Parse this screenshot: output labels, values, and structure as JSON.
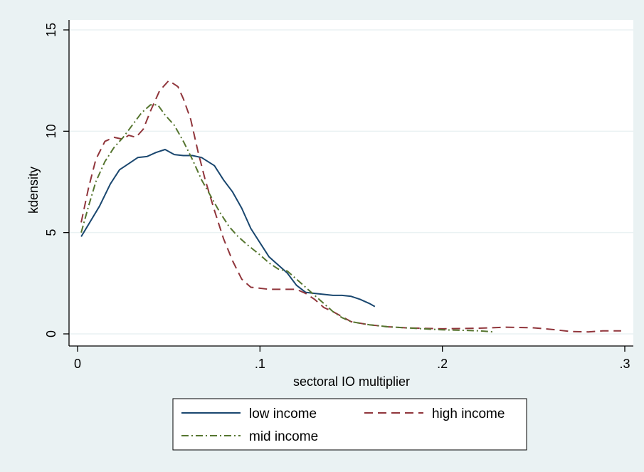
{
  "chart_data": {
    "type": "line",
    "xlabel": "sectoral IO multiplier",
    "ylabel": "kdensity",
    "xlim": [
      0,
      0.3
    ],
    "ylim": [
      0,
      15
    ],
    "x_ticks": [
      0,
      0.1,
      0.2,
      0.3
    ],
    "x_tick_labels": [
      "0",
      ".1",
      ".2",
      ".3"
    ],
    "y_ticks": [
      0,
      5,
      10,
      15
    ],
    "y_tick_labels": [
      "0",
      "5",
      "10",
      "15"
    ],
    "grid": "horizontal",
    "legend_position": "bottom",
    "series": [
      {
        "name": "low income",
        "color": "#1a476f",
        "dash": "solid",
        "points": [
          [
            0.002,
            4.8
          ],
          [
            0.006,
            5.4
          ],
          [
            0.012,
            6.3
          ],
          [
            0.018,
            7.4
          ],
          [
            0.023,
            8.1
          ],
          [
            0.028,
            8.4
          ],
          [
            0.033,
            8.7
          ],
          [
            0.038,
            8.75
          ],
          [
            0.043,
            8.95
          ],
          [
            0.048,
            9.1
          ],
          [
            0.053,
            8.85
          ],
          [
            0.058,
            8.8
          ],
          [
            0.063,
            8.8
          ],
          [
            0.068,
            8.7
          ],
          [
            0.075,
            8.3
          ],
          [
            0.08,
            7.6
          ],
          [
            0.085,
            7.0
          ],
          [
            0.09,
            6.2
          ],
          [
            0.095,
            5.2
          ],
          [
            0.1,
            4.5
          ],
          [
            0.105,
            3.8
          ],
          [
            0.11,
            3.4
          ],
          [
            0.115,
            3.0
          ],
          [
            0.12,
            2.4
          ],
          [
            0.125,
            2.05
          ],
          [
            0.13,
            2.0
          ],
          [
            0.135,
            1.95
          ],
          [
            0.14,
            1.9
          ],
          [
            0.145,
            1.9
          ],
          [
            0.15,
            1.85
          ],
          [
            0.155,
            1.7
          ],
          [
            0.16,
            1.5
          ],
          [
            0.163,
            1.35
          ]
        ]
      },
      {
        "name": "high income",
        "color": "#90353b",
        "dash": "long-dash",
        "points": [
          [
            0.002,
            5.5
          ],
          [
            0.006,
            7.2
          ],
          [
            0.01,
            8.6
          ],
          [
            0.015,
            9.5
          ],
          [
            0.02,
            9.7
          ],
          [
            0.025,
            9.6
          ],
          [
            0.028,
            9.8
          ],
          [
            0.032,
            9.7
          ],
          [
            0.036,
            10.1
          ],
          [
            0.04,
            11.0
          ],
          [
            0.045,
            12.0
          ],
          [
            0.05,
            12.5
          ],
          [
            0.055,
            12.2
          ],
          [
            0.058,
            11.6
          ],
          [
            0.062,
            10.6
          ],
          [
            0.066,
            9.0
          ],
          [
            0.07,
            7.6
          ],
          [
            0.075,
            6.1
          ],
          [
            0.08,
            4.7
          ],
          [
            0.085,
            3.6
          ],
          [
            0.09,
            2.7
          ],
          [
            0.095,
            2.3
          ],
          [
            0.1,
            2.25
          ],
          [
            0.105,
            2.2
          ],
          [
            0.11,
            2.2
          ],
          [
            0.115,
            2.2
          ],
          [
            0.12,
            2.2
          ],
          [
            0.125,
            2.0
          ],
          [
            0.13,
            1.7
          ],
          [
            0.135,
            1.3
          ],
          [
            0.14,
            1.1
          ],
          [
            0.15,
            0.6
          ],
          [
            0.16,
            0.45
          ],
          [
            0.17,
            0.35
          ],
          [
            0.18,
            0.3
          ],
          [
            0.2,
            0.25
          ],
          [
            0.22,
            0.28
          ],
          [
            0.235,
            0.33
          ],
          [
            0.25,
            0.3
          ],
          [
            0.26,
            0.22
          ],
          [
            0.27,
            0.12
          ],
          [
            0.28,
            0.1
          ],
          [
            0.288,
            0.15
          ],
          [
            0.298,
            0.15
          ]
        ]
      },
      {
        "name": "mid income",
        "color": "#55752f",
        "dash": "dash-dot",
        "points": [
          [
            0.002,
            5.0
          ],
          [
            0.006,
            6.3
          ],
          [
            0.01,
            7.5
          ],
          [
            0.015,
            8.5
          ],
          [
            0.02,
            9.2
          ],
          [
            0.025,
            9.7
          ],
          [
            0.03,
            10.3
          ],
          [
            0.035,
            10.9
          ],
          [
            0.04,
            11.3
          ],
          [
            0.044,
            11.3
          ],
          [
            0.048,
            10.8
          ],
          [
            0.053,
            10.3
          ],
          [
            0.058,
            9.5
          ],
          [
            0.063,
            8.6
          ],
          [
            0.068,
            7.6
          ],
          [
            0.073,
            6.8
          ],
          [
            0.078,
            6.0
          ],
          [
            0.083,
            5.3
          ],
          [
            0.088,
            4.8
          ],
          [
            0.093,
            4.4
          ],
          [
            0.1,
            3.9
          ],
          [
            0.105,
            3.5
          ],
          [
            0.11,
            3.2
          ],
          [
            0.115,
            3.1
          ],
          [
            0.12,
            2.7
          ],
          [
            0.125,
            2.3
          ],
          [
            0.13,
            1.9
          ],
          [
            0.135,
            1.5
          ],
          [
            0.14,
            1.1
          ],
          [
            0.145,
            0.8
          ],
          [
            0.15,
            0.6
          ],
          [
            0.16,
            0.45
          ],
          [
            0.17,
            0.35
          ],
          [
            0.18,
            0.3
          ],
          [
            0.19,
            0.25
          ],
          [
            0.2,
            0.2
          ],
          [
            0.21,
            0.18
          ],
          [
            0.22,
            0.15
          ],
          [
            0.228,
            0.1
          ]
        ]
      }
    ]
  }
}
